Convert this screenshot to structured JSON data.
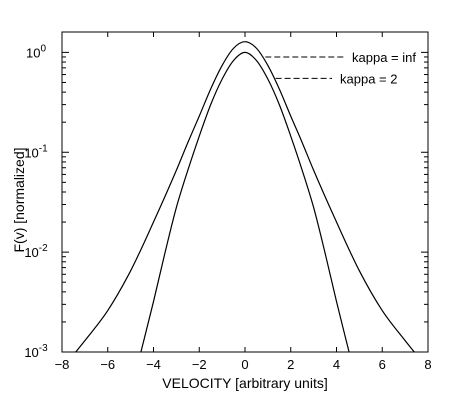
{
  "chart_data": {
    "type": "line",
    "xlabel": "VELOCITY  [arbitrary units]",
    "ylabel": "F(v)  [normalized]",
    "xlim": [
      -8,
      8
    ],
    "ylim": [
      0.001,
      1.6
    ],
    "yscale": "log",
    "grid": false,
    "xticks": [
      -8,
      -6,
      -4,
      -2,
      0,
      2,
      4,
      6,
      8
    ],
    "xtick_labels": [
      "−8",
      "−6",
      "−4",
      "−2",
      "0",
      "2",
      "4",
      "6",
      "8"
    ],
    "yticks": [
      0.001,
      0.01,
      0.1,
      1
    ],
    "ytick_labels": [
      {
        "base": "10",
        "exp": "-3"
      },
      {
        "base": "10",
        "exp": "-2"
      },
      {
        "base": "10",
        "exp": "-1"
      },
      {
        "base": "10",
        "exp": "0"
      }
    ],
    "series": [
      {
        "name": "kappa = inf",
        "x": [
          -4.55,
          -4.0,
          -3.5,
          -3.0,
          -2.5,
          -2.0,
          -1.5,
          -1.0,
          -0.5,
          0,
          0.5,
          1.0,
          1.5,
          2.0,
          2.5,
          3.0,
          3.5,
          4.0,
          4.55
        ],
        "y": [
          0.001,
          0.0032,
          0.0098,
          0.028,
          0.066,
          0.145,
          0.3,
          0.54,
          0.83,
          1.0,
          0.83,
          0.54,
          0.3,
          0.145,
          0.066,
          0.028,
          0.0098,
          0.0032,
          0.001
        ]
      },
      {
        "name": "kappa = 2",
        "x": [
          -7.4,
          -7.0,
          -6.0,
          -5.0,
          -4.0,
          -3.0,
          -2.5,
          -2.0,
          -1.5,
          -1.0,
          -0.5,
          0,
          0.5,
          1.0,
          1.5,
          2.0,
          2.5,
          3.0,
          4.0,
          5.0,
          6.0,
          7.0,
          7.4
        ],
        "y": [
          0.001,
          0.0013,
          0.0026,
          0.0065,
          0.02,
          0.066,
          0.125,
          0.23,
          0.43,
          0.74,
          1.1,
          1.28,
          1.1,
          0.74,
          0.43,
          0.23,
          0.125,
          0.066,
          0.02,
          0.0065,
          0.0026,
          0.0013,
          0.001
        ]
      }
    ],
    "annotations": [
      {
        "text": "kappa = inf",
        "series": 0,
        "x": 0.8,
        "y": 0.9
      },
      {
        "text": "kappa = 2",
        "series": 1,
        "x": 1.25,
        "y": 0.55
      }
    ]
  }
}
